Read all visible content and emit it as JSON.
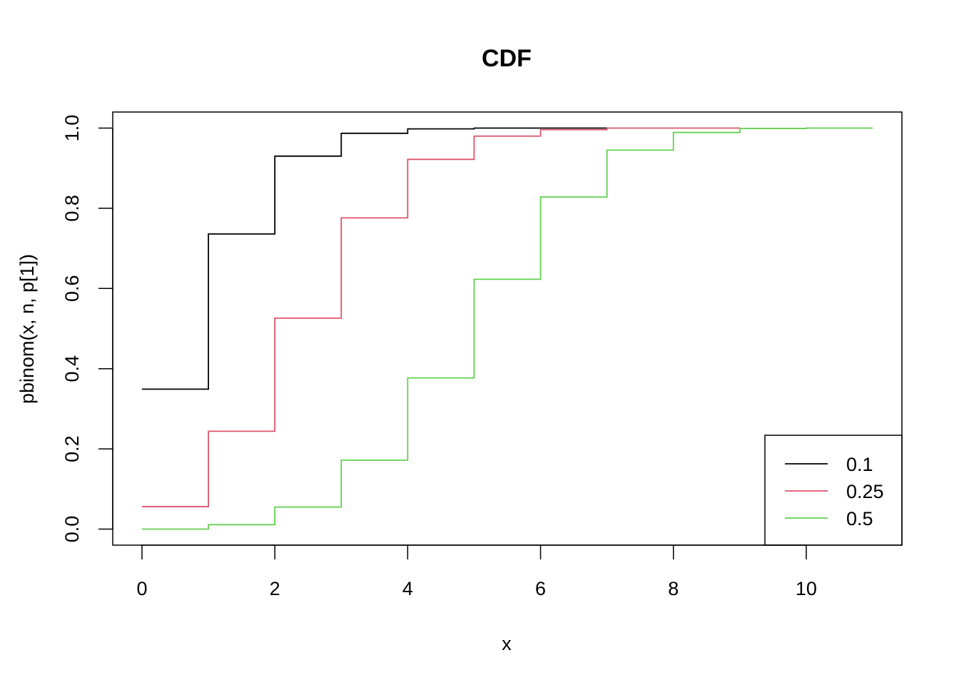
{
  "chart_data": {
    "type": "line",
    "step": true,
    "title": "CDF",
    "xlabel": "x",
    "ylabel": "pbinom(x, n, p[1])",
    "xlim": [
      -0.44,
      11.44
    ],
    "ylim": [
      -0.04,
      1.04
    ],
    "xticks": [
      0,
      2,
      4,
      6,
      8,
      10
    ],
    "yticks": [
      0.0,
      0.2,
      0.4,
      0.6,
      0.8,
      1.0
    ],
    "xtick_labels": [
      "0",
      "2",
      "4",
      "6",
      "8",
      "10"
    ],
    "ytick_labels": [
      "0.0",
      "0.2",
      "0.4",
      "0.6",
      "0.8",
      "1.0"
    ],
    "grid": false,
    "legend_position": "bottom-right",
    "series": [
      {
        "name": "0.1",
        "color": "#000000",
        "x": [
          0,
          1,
          2,
          3,
          4,
          5,
          6,
          7
        ],
        "y": [
          0.349,
          0.736,
          0.93,
          0.987,
          0.998,
          1.0,
          1.0,
          1.0
        ]
      },
      {
        "name": "0.25",
        "color": "#DF536B",
        "x": [
          0,
          1,
          2,
          3,
          4,
          5,
          6,
          7,
          8,
          9
        ],
        "y": [
          0.056,
          0.244,
          0.526,
          0.776,
          0.922,
          0.98,
          0.996,
          1.0,
          1.0,
          1.0
        ]
      },
      {
        "name": "0.5",
        "color": "#61D04F",
        "x": [
          0,
          1,
          2,
          3,
          4,
          5,
          6,
          7,
          8,
          9,
          10,
          11
        ],
        "y": [
          0.0,
          0.011,
          0.055,
          0.172,
          0.377,
          0.623,
          0.828,
          0.945,
          0.989,
          0.999,
          1.0,
          1.0
        ]
      }
    ]
  }
}
